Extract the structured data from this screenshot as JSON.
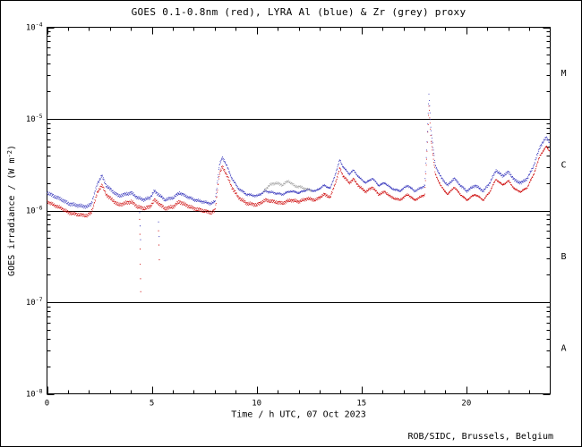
{
  "figure": {
    "title": "GOES 0.1-0.8nm (red), LYRA Al (blue) & Zr (grey) proxy",
    "credit": "ROB/SIDC, Brussels, Belgium"
  },
  "chart_data": {
    "type": "scatter",
    "title": "GOES 0.1-0.8nm (red), LYRA Al (blue) & Zr (grey) proxy",
    "xlabel": "Time / h UTC, 07 Oct 2023",
    "ylabel": {
      "main": "GOES irradiance / (W m",
      "sup": "-2",
      "end": ")"
    },
    "x_range": [
      0,
      24
    ],
    "y_log10_range": [
      -8,
      -4
    ],
    "x_major_ticks": [
      0,
      5,
      10,
      15,
      20
    ],
    "x_minor_step": 1,
    "y_decades": [
      -8,
      -7,
      -6,
      -5,
      -4
    ],
    "class_boundaries": [
      1e-05,
      1e-06,
      1e-07
    ],
    "class_labels": [
      {
        "label": "M",
        "log10_center": -4.5
      },
      {
        "label": "C",
        "log10_center": -5.5
      },
      {
        "label": "B",
        "log10_center": -6.5
      },
      {
        "label": "A",
        "log10_center": -7.5
      }
    ],
    "series": [
      {
        "name": "GOES 0.1-0.8nm",
        "color": "#cc0000",
        "x": [
          0,
          0.3,
          0.7,
          1,
          1.5,
          1.9,
          2.1,
          2.4,
          2.6,
          2.8,
          3.1,
          3.4,
          3.7,
          4,
          4.3,
          4.6,
          4.9,
          5.1,
          5.3,
          5.6,
          6,
          6.3,
          6.6,
          7,
          7.4,
          7.8,
          8,
          8.2,
          8.35,
          8.5,
          8.8,
          9.1,
          9.5,
          10,
          10.4,
          10.8,
          11.2,
          11.6,
          12,
          12.4,
          12.8,
          13.2,
          13.5,
          13.8,
          13.95,
          14.1,
          14.4,
          14.6,
          14.9,
          15.2,
          15.5,
          15.8,
          16.1,
          16.4,
          16.8,
          17.2,
          17.5,
          17.8,
          18,
          18.1,
          18.2,
          18.3,
          18.5,
          18.8,
          19.1,
          19.4,
          19.7,
          20,
          20.4,
          20.8,
          21.1,
          21.4,
          21.7,
          22,
          22.3,
          22.6,
          22.9,
          23.2,
          23.5,
          23.8,
          23.95
        ],
        "y": [
          1.25e-06,
          1.15e-06,
          1.05e-06,
          9.5e-07,
          9e-07,
          8.8e-07,
          9.5e-07,
          1.6e-06,
          1.9e-06,
          1.5e-06,
          1.3e-06,
          1.15e-06,
          1.2e-06,
          1.25e-06,
          1.1e-06,
          1.05e-06,
          1.1e-06,
          1.3e-06,
          1.2e-06,
          1.05e-06,
          1.1e-06,
          1.25e-06,
          1.15e-06,
          1.05e-06,
          1e-06,
          9.5e-07,
          1e-06,
          2.5e-06,
          3e-06,
          2.6e-06,
          1.8e-06,
          1.4e-06,
          1.2e-06,
          1.15e-06,
          1.3e-06,
          1.25e-06,
          1.2e-06,
          1.3e-06,
          1.25e-06,
          1.35e-06,
          1.3e-06,
          1.5e-06,
          1.4e-06,
          2.2e-06,
          2.9e-06,
          2.4e-06,
          2e-06,
          2.2e-06,
          1.8e-06,
          1.6e-06,
          1.8e-06,
          1.5e-06,
          1.6e-06,
          1.4e-06,
          1.3e-06,
          1.5e-06,
          1.3e-06,
          1.4e-06,
          1.5e-06,
          4e-06,
          1.4e-05,
          6e-06,
          2.5e-06,
          1.8e-06,
          1.5e-06,
          1.8e-06,
          1.5e-06,
          1.3e-06,
          1.5e-06,
          1.3e-06,
          1.6e-06,
          2.2e-06,
          1.9e-06,
          2.1e-06,
          1.7e-06,
          1.6e-06,
          1.8e-06,
          2.5e-06,
          4e-06,
          5e-06,
          4.5e-06
        ]
      },
      {
        "name": "LYRA Al proxy",
        "color": "#3333bb",
        "x": [
          0,
          0.3,
          0.7,
          1,
          1.5,
          1.9,
          2.1,
          2.4,
          2.6,
          2.8,
          3.1,
          3.4,
          3.7,
          4,
          4.3,
          4.6,
          4.9,
          5.1,
          5.3,
          5.6,
          6,
          6.3,
          6.6,
          7,
          7.4,
          7.8,
          8,
          8.2,
          8.35,
          8.5,
          8.8,
          9.1,
          9.5,
          10,
          10.4,
          10.8,
          11.2,
          11.6,
          12,
          12.4,
          12.8,
          13.2,
          13.5,
          13.8,
          13.95,
          14.1,
          14.4,
          14.6,
          14.9,
          15.2,
          15.5,
          15.8,
          16.1,
          16.4,
          16.8,
          17.2,
          17.5,
          17.8,
          18,
          18.1,
          18.2,
          18.3,
          18.5,
          18.8,
          19.1,
          19.4,
          19.7,
          20,
          20.4,
          20.8,
          21.1,
          21.4,
          21.7,
          22,
          22.3,
          22.6,
          22.9,
          23.2,
          23.5,
          23.8,
          23.95
        ],
        "y": [
          1.56e-06,
          1.44e-06,
          1.31e-06,
          1.19e-06,
          1.13e-06,
          1.1e-06,
          1.19e-06,
          2e-06,
          2.4e-06,
          1.88e-06,
          1.63e-06,
          1.44e-06,
          1.5e-06,
          1.56e-06,
          1.38e-06,
          1.31e-06,
          1.38e-06,
          1.63e-06,
          1.5e-06,
          1.31e-06,
          1.38e-06,
          1.56e-06,
          1.44e-06,
          1.31e-06,
          1.25e-06,
          1.19e-06,
          1.25e-06,
          3.1e-06,
          3.8e-06,
          3.3e-06,
          2.25e-06,
          1.75e-06,
          1.5e-06,
          1.44e-06,
          1.63e-06,
          1.56e-06,
          1.5e-06,
          1.63e-06,
          1.56e-06,
          1.69e-06,
          1.63e-06,
          1.88e-06,
          1.75e-06,
          2.75e-06,
          3.6e-06,
          3e-06,
          2.5e-06,
          2.75e-06,
          2.25e-06,
          2e-06,
          2.25e-06,
          1.88e-06,
          2e-06,
          1.75e-06,
          1.63e-06,
          1.88e-06,
          1.63e-06,
          1.75e-06,
          1.88e-06,
          5e-06,
          1.9e-05,
          7.5e-06,
          3.1e-06,
          2.25e-06,
          1.88e-06,
          2.25e-06,
          1.88e-06,
          1.63e-06,
          1.88e-06,
          1.63e-06,
          2e-06,
          2.75e-06,
          2.38e-06,
          2.63e-06,
          2.13e-06,
          2e-06,
          2.25e-06,
          3.1e-06,
          5e-06,
          6.3e-06,
          5.6e-06
        ]
      },
      {
        "name": "LYRA Zr proxy",
        "color": "#a0a0a0",
        "x": [
          10.3,
          10.6,
          10.9,
          11.2,
          11.5,
          11.8,
          12.1,
          12.4,
          12.6
        ],
        "y": [
          1.6e-06,
          1.9e-06,
          2e-06,
          1.9e-06,
          2.1e-06,
          1.85e-06,
          1.8e-06,
          1.7e-06,
          1.65e-06
        ]
      }
    ],
    "dropout_points": [
      {
        "color": "#cc0000",
        "points": [
          [
            4.4,
            8e-07
          ],
          [
            4.41,
            5.5e-07
          ],
          [
            4.42,
            3.8e-07
          ],
          [
            4.43,
            2.6e-07
          ],
          [
            4.44,
            1.8e-07
          ],
          [
            4.45,
            1.3e-07
          ],
          [
            5.3,
            6e-07
          ],
          [
            5.32,
            4.2e-07
          ],
          [
            5.34,
            2.9e-07
          ]
        ]
      },
      {
        "color": "#3333bb",
        "points": [
          [
            4.4,
            9.5e-07
          ],
          [
            4.42,
            6.8e-07
          ],
          [
            4.44,
            4.8e-07
          ],
          [
            5.3,
            7.5e-07
          ],
          [
            5.33,
            5.2e-07
          ]
        ]
      }
    ]
  }
}
